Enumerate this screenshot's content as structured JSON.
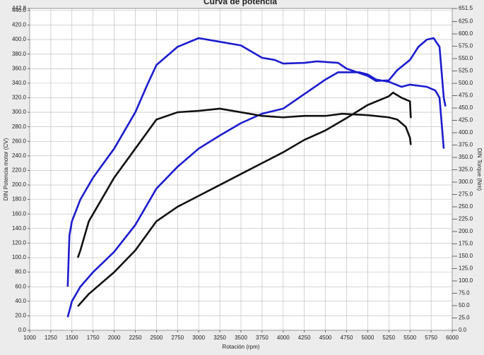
{
  "chart_data": {
    "type": "line",
    "title": "Curva de potencia",
    "xlabel": "Rotación (rpm)",
    "ylabel": "DIN Potencia motor (CV)",
    "y2label": "DIN Torque (Nm)",
    "xlim": [
      1000,
      6000
    ],
    "xticks": [
      1000,
      1250,
      1500,
      1750,
      2000,
      2250,
      2500,
      2750,
      3000,
      3250,
      3500,
      3750,
      4000,
      4250,
      4500,
      4750,
      5000,
      5250,
      5500,
      5750,
      6000
    ],
    "ylim": [
      0,
      442.8
    ],
    "yticks": [
      {
        "value": 0,
        "label": "0.0"
      },
      {
        "value": 20,
        "label": "20.0"
      },
      {
        "value": 40,
        "label": "40.0"
      },
      {
        "value": 60,
        "label": "60.0"
      },
      {
        "value": 80,
        "label": "80.0"
      },
      {
        "value": 100,
        "label": "100.0"
      },
      {
        "value": 120,
        "label": "120.0"
      },
      {
        "value": 140,
        "label": "140.0"
      },
      {
        "value": 160,
        "label": "160.0"
      },
      {
        "value": 180,
        "label": "180.0"
      },
      {
        "value": 200,
        "label": "200.0"
      },
      {
        "value": 220,
        "label": "220.0"
      },
      {
        "value": 240,
        "label": "240.0"
      },
      {
        "value": 260,
        "label": "260.0"
      },
      {
        "value": 280,
        "label": "280.0"
      },
      {
        "value": 300,
        "label": "300.0"
      },
      {
        "value": 320,
        "label": "320.0"
      },
      {
        "value": 340,
        "label": "340.0"
      },
      {
        "value": 360,
        "label": "360.0"
      },
      {
        "value": 380,
        "label": "380.0"
      },
      {
        "value": 400,
        "label": "400.0"
      },
      {
        "value": 420,
        "label": "420.0"
      },
      {
        "value": 440,
        "label": "440.0"
      },
      442.8
    ],
    "y2lim": [
      0,
      651.5
    ],
    "y2ticks": [
      {
        "value": 0,
        "label": "0.0"
      },
      {
        "value": 25,
        "label": "25.0"
      },
      {
        "value": 50,
        "label": "50.0"
      },
      {
        "value": 75,
        "label": "75.0"
      },
      {
        "value": 100,
        "label": "100.0"
      },
      {
        "value": 125,
        "label": "125.0"
      },
      {
        "value": 150,
        "label": "150.0"
      },
      {
        "value": 175,
        "label": "175.0"
      },
      {
        "value": 200,
        "label": "200.0"
      },
      {
        "value": 225,
        "label": "225.0"
      },
      {
        "value": 250,
        "label": "250.0"
      },
      {
        "value": 275,
        "label": "275.0"
      },
      {
        "value": 300,
        "label": "300.0"
      },
      {
        "value": 325,
        "label": "325.0"
      },
      {
        "value": 350,
        "label": "350.0"
      },
      {
        "value": 375,
        "label": "375.0"
      },
      {
        "value": 400,
        "label": "400.0"
      },
      {
        "value": 425,
        "label": "425.0"
      },
      {
        "value": 450,
        "label": "450.0"
      },
      {
        "value": 475,
        "label": "475.0"
      },
      {
        "value": 500,
        "label": "500.0"
      },
      {
        "value": 525,
        "label": "525.0"
      },
      {
        "value": 550,
        "label": "550.0"
      },
      {
        "value": 575,
        "label": "575.0"
      },
      {
        "value": 600,
        "label": "600.0"
      },
      {
        "value": 625,
        "label": "625.0"
      },
      651.5
    ],
    "grid": true,
    "series": [
      {
        "color": "#1c1ccf",
        "axis": "y2",
        "x": [
          1450,
          1470,
          1500,
          1600,
          1750,
          2000,
          2250,
          2400,
          2500,
          2750,
          3000,
          3250,
          3500,
          3750,
          3900,
          4000,
          4250,
          4400,
          4650,
          4750,
          5000,
          5100,
          5250,
          5350,
          5500,
          5600,
          5700,
          5780,
          5850,
          5900,
          5920
        ],
        "values": [
          88.3,
          191.3,
          220.7,
          264.8,
          309.0,
          367.8,
          441.4,
          500.2,
          537.0,
          573.8,
          591.5,
          584.1,
          576.7,
          551.7,
          547.3,
          540.0,
          541.4,
          544.4,
          541.4,
          529.7,
          515.0,
          504.7,
          506.1,
          526.7,
          547.3,
          573.8,
          588.5,
          591.5,
          573.8,
          470.8,
          453.2
        ]
      },
      {
        "color": "#1c1ccf",
        "x": [
          1450,
          1500,
          1600,
          1750,
          2000,
          2250,
          2500,
          2750,
          3000,
          3250,
          3500,
          3750,
          4000,
          4250,
          4500,
          4650,
          4750,
          4900,
          5000,
          5100,
          5250,
          5400,
          5500,
          5700,
          5800,
          5850,
          5900
        ],
        "values": [
          18,
          40,
          60,
          80,
          108,
          145,
          195,
          225,
          250,
          268,
          285,
          298,
          305,
          325,
          345,
          355,
          355,
          355,
          352,
          345,
          342,
          335,
          338,
          335,
          330,
          320,
          250
        ]
      },
      {
        "color": "#111111",
        "axis": "y2",
        "x": [
          1570,
          1600,
          1700,
          1800,
          2000,
          2250,
          2500,
          2750,
          3000,
          3250,
          3500,
          3750,
          4000,
          4250,
          4500,
          4700,
          5000,
          5250,
          5350,
          5450,
          5500,
          5510
        ],
        "values": [
          147.1,
          161.8,
          220.7,
          250.1,
          309.0,
          367.8,
          426.7,
          441.4,
          444.3,
          448.7,
          441.4,
          434.0,
          431.1,
          434.0,
          434.0,
          438.4,
          435.5,
          431.1,
          426.7,
          412.0,
          389.9,
          375.2
        ]
      },
      {
        "color": "#111111",
        "x": [
          1570,
          1700,
          2000,
          2250,
          2500,
          2750,
          3000,
          3250,
          3500,
          3750,
          4000,
          4250,
          4500,
          4750,
          5000,
          5250,
          5300,
          5400,
          5500,
          5510
        ],
        "values": [
          33,
          50,
          80,
          110,
          150,
          170,
          185,
          200,
          215,
          230,
          245,
          262,
          275,
          292,
          310,
          322,
          327,
          320,
          315,
          292
        ]
      }
    ]
  }
}
